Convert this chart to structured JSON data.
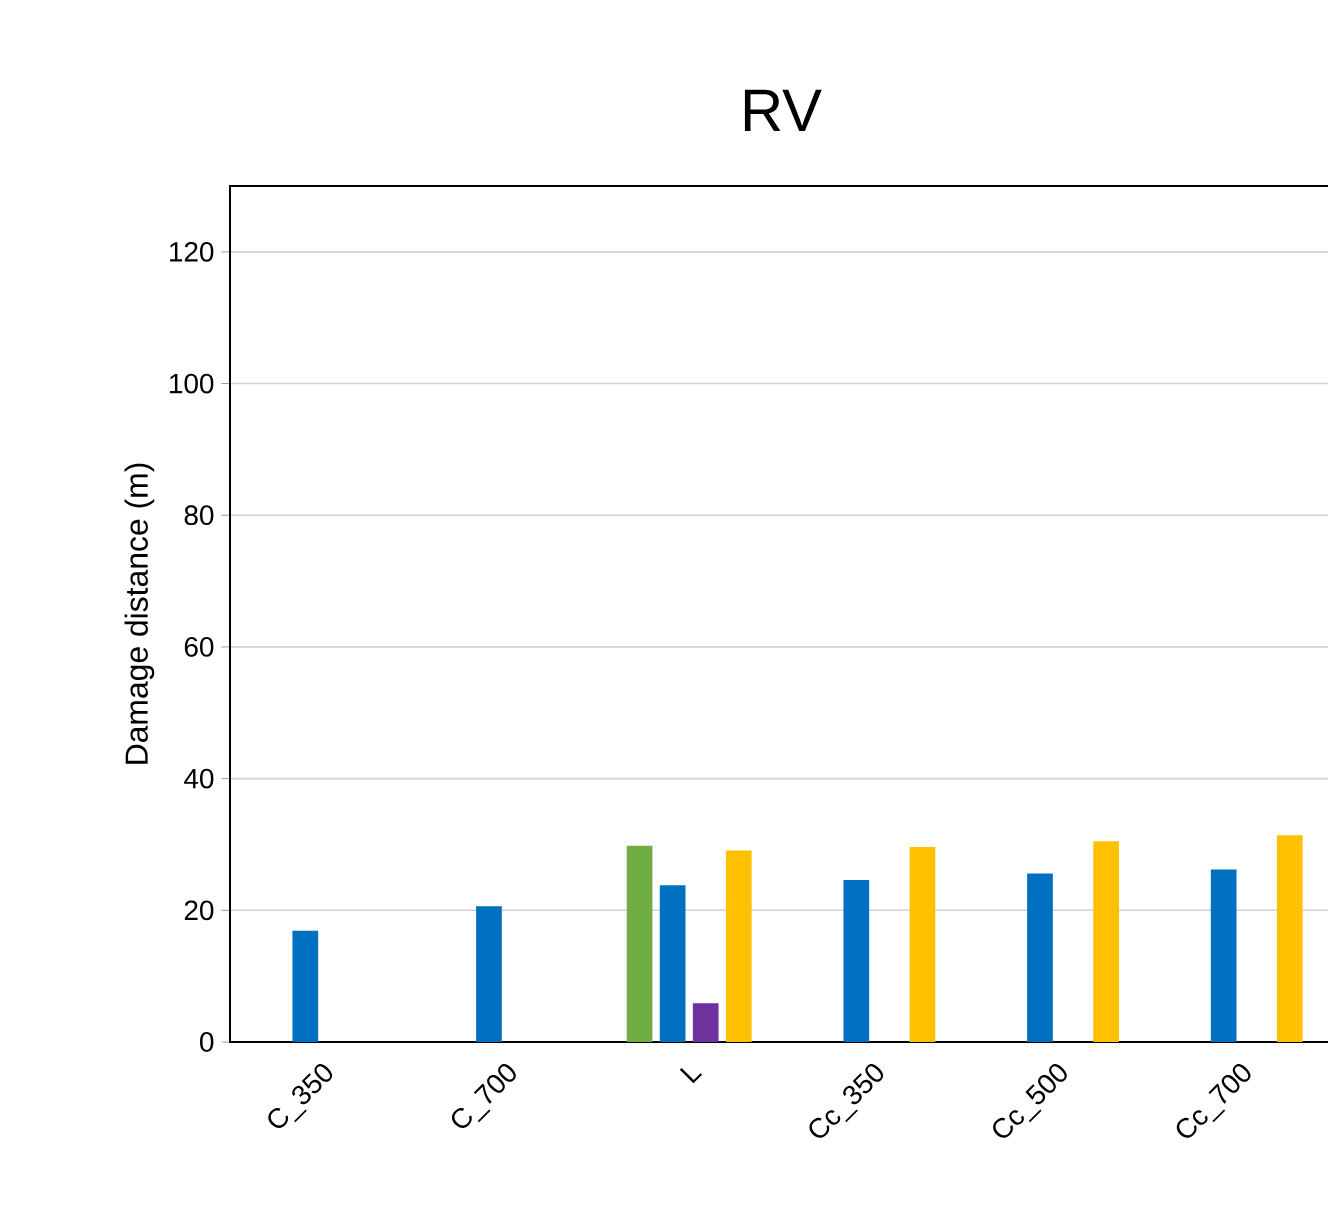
{
  "chart_data": {
    "type": "bar",
    "title": "RV",
    "ylabel": "Damage distance (m)",
    "categories": [
      "C_350",
      "C_700",
      "L",
      "Cc_350",
      "Cc_500",
      "Cc_700"
    ],
    "series": [
      {
        "color": "#70ad47",
        "values": [
          null,
          null,
          29.8,
          null,
          null,
          null
        ]
      },
      {
        "color": "#0070c0",
        "values": [
          16.9,
          20.6,
          23.8,
          24.6,
          25.6,
          26.2
        ]
      },
      {
        "color": "#7030a0",
        "values": [
          null,
          null,
          5.9,
          null,
          null,
          null
        ]
      },
      {
        "color": "#ffc000",
        "values": [
          null,
          null,
          29.1,
          29.6,
          30.5,
          31.4
        ]
      }
    ],
    "ylim": [
      0,
      130
    ],
    "yticks": [
      0,
      20,
      40,
      60,
      80,
      100,
      120
    ],
    "grid": "y"
  }
}
